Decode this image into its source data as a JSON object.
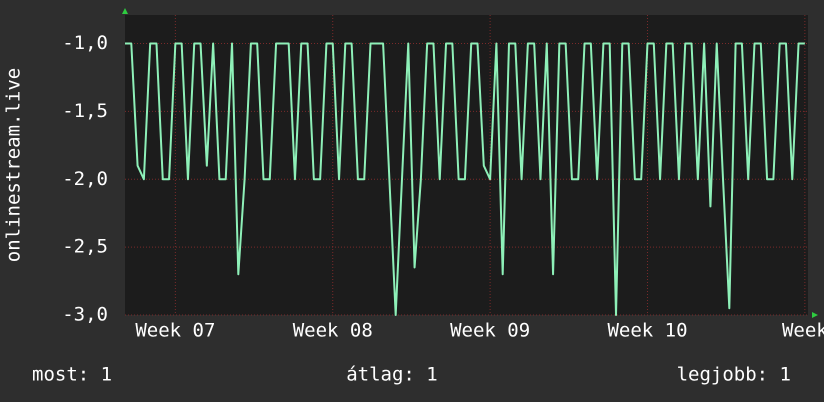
{
  "chart_data": {
    "type": "line",
    "ylabel": "onlinestream.live",
    "x": [
      6.68,
      6.72,
      6.76,
      6.8,
      6.84,
      6.88,
      6.92,
      6.96,
      7,
      7.04,
      7.08,
      7.12,
      7.16,
      7.2,
      7.24,
      7.28,
      7.32,
      7.36,
      7.4,
      7.44,
      7.48,
      7.52,
      7.56,
      7.6,
      7.64,
      7.68,
      7.72,
      7.76,
      7.8,
      7.84,
      7.88,
      7.92,
      7.96,
      8,
      8.04,
      8.08,
      8.12,
      8.16,
      8.2,
      8.24,
      8.28,
      8.32,
      8.36,
      8.4,
      8.44,
      8.48,
      8.52,
      8.56,
      8.6,
      8.64,
      8.68,
      8.72,
      8.76,
      8.8,
      8.84,
      8.88,
      8.92,
      8.96,
      9,
      9.04,
      9.08,
      9.12,
      9.16,
      9.2,
      9.24,
      9.28,
      9.32,
      9.36,
      9.4,
      9.44,
      9.48,
      9.52,
      9.56,
      9.6,
      9.64,
      9.68,
      9.72,
      9.76,
      9.8,
      9.84,
      9.88,
      9.92,
      9.96,
      10,
      10.04,
      10.08,
      10.12,
      10.16,
      10.2,
      10.24,
      10.28,
      10.32,
      10.36,
      10.4,
      10.44,
      10.48,
      10.52,
      10.56,
      10.6,
      10.64,
      10.68,
      10.72,
      10.76,
      10.8,
      10.84,
      10.88,
      10.92,
      10.96,
      11
    ],
    "series": [
      {
        "color": "#8ef0b8",
        "values": [
          -1,
          -1,
          -1.9,
          -2,
          -1,
          -1,
          -2,
          -2,
          -1,
          -1,
          -2,
          -1,
          -1,
          -1.9,
          -1,
          -2,
          -2,
          -1,
          -2.7,
          -2,
          -1,
          -1,
          -2,
          -2,
          -1,
          -1,
          -1,
          -2,
          -1,
          -1,
          -2,
          -2,
          -1,
          -1,
          -2,
          -1,
          -1,
          -2,
          -2,
          -1,
          -1,
          -1,
          -2,
          -3,
          -2,
          -1,
          -2.65,
          -2,
          -1,
          -1,
          -2,
          -1,
          -1,
          -2,
          -2,
          -1,
          -1,
          -1.9,
          -2,
          -1,
          -2.7,
          -1,
          -1,
          -2,
          -1,
          -1,
          -2,
          -1,
          -2.7,
          -1,
          -1,
          -2,
          -2,
          -1,
          -1,
          -2,
          -1,
          -1,
          -3,
          -1,
          -1,
          -2,
          -2,
          -1,
          -1,
          -2,
          -1,
          -1,
          -2,
          -1,
          -1,
          -2,
          -1,
          -2.2,
          -1,
          -2,
          -2.95,
          -1,
          -1,
          -2,
          -1,
          -1,
          -2,
          -2,
          -1,
          -1,
          -2,
          -1,
          -1
        ]
      }
    ],
    "xlim": [
      6.68,
      11.02
    ],
    "xticks": [
      {
        "value": 7,
        "label": "Week 07"
      },
      {
        "value": 8,
        "label": "Week 08"
      },
      {
        "value": 9,
        "label": "Week 09"
      },
      {
        "value": 10,
        "label": "Week 10"
      },
      {
        "value": 11,
        "label": "Week"
      }
    ],
    "ylim": [
      -3,
      -0.79
    ],
    "yticks": [
      {
        "value": -3,
        "label": "-3,0"
      },
      {
        "value": -2.5,
        "label": "-2,5"
      },
      {
        "value": -2,
        "label": "-2,0"
      },
      {
        "value": -1.5,
        "label": "-1,5"
      },
      {
        "value": -1,
        "label": "-1,0"
      }
    ],
    "grid": true,
    "stats": [
      "most: 1",
      "átlag: 1",
      "legjobb: 1"
    ]
  }
}
